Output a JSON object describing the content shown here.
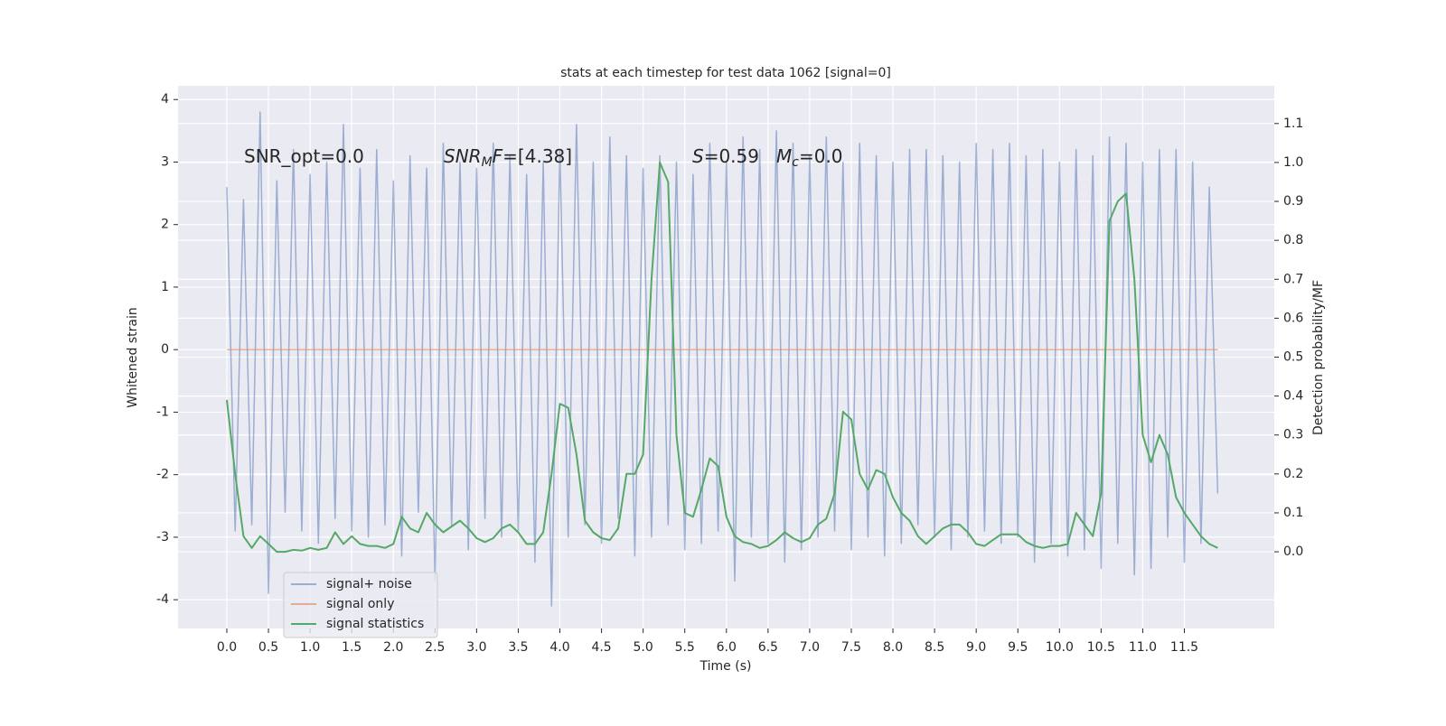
{
  "chart_data": {
    "type": "line",
    "title": "stats at each timestep for test data 1062 [signal=0]",
    "xlabel": "Time (s)",
    "ylabel": "Whitened strain",
    "y2label": "Detection probability/MF",
    "xlim": [
      -0.586,
      12.58
    ],
    "ylim": [
      -4.46,
      4.22
    ],
    "y2lim": [
      -0.197,
      1.197
    ],
    "xticks": [
      {
        "value": 0,
        "label": "0.0"
      },
      0.5,
      {
        "value": 1,
        "label": "1.0"
      },
      1.5,
      {
        "value": 2,
        "label": "2.0"
      },
      2.5,
      {
        "value": 3,
        "label": "3.0"
      },
      3.5,
      {
        "value": 4,
        "label": "4.0"
      },
      4.5,
      {
        "value": 5,
        "label": "5.0"
      },
      5.5,
      {
        "value": 6,
        "label": "6.0"
      },
      6.5,
      {
        "value": 7,
        "label": "7.0"
      },
      7.5,
      {
        "value": 8,
        "label": "8.0"
      },
      8.5,
      {
        "value": 9,
        "label": "9.0"
      },
      9.5,
      {
        "value": 10,
        "label": "10.0"
      },
      10.5,
      {
        "value": 11,
        "label": "11.0"
      },
      11.5
    ],
    "yticks": [
      -4,
      -3,
      -2,
      -1,
      0,
      1,
      2,
      3,
      4
    ],
    "y2ticks": [
      {
        "value": 0,
        "label": "0.0"
      },
      0.1,
      0.2,
      0.3,
      0.4,
      0.5,
      0.6,
      0.7,
      0.8,
      0.9,
      {
        "value": 1,
        "label": "1.0"
      },
      1.1
    ],
    "grid": true,
    "legend": "lower left",
    "annotations": [
      [
        {
          "text": "SNR_opt=0.0"
        }
      ],
      [
        {
          "text": "SNR",
          "italic": true
        },
        {
          "text": "M",
          "italic": true,
          "sub": true
        },
        {
          "text": "F",
          "italic": true
        },
        {
          "text": "=[4.38]"
        }
      ],
      [
        {
          "text": "S",
          "italic": true
        },
        {
          "text": "=0.59"
        }
      ],
      [
        {
          "text": "M",
          "italic": true
        },
        {
          "text": "c",
          "italic": true,
          "sub": true
        },
        {
          "text": "=0.0"
        }
      ]
    ],
    "x": [
      0,
      0.1,
      0.2,
      0.3,
      0.4,
      0.5,
      0.6,
      0.7,
      0.8,
      0.9,
      1,
      1.1,
      1.2,
      1.3,
      1.4,
      1.5,
      1.6,
      1.7,
      1.8,
      1.9,
      2,
      2.1,
      2.2,
      2.3,
      2.4,
      2.5,
      2.6,
      2.7,
      2.8,
      2.9,
      3,
      3.1,
      3.2,
      3.3,
      3.4,
      3.5,
      3.6,
      3.7,
      3.8,
      3.9,
      4,
      4.1,
      4.2,
      4.3,
      4.4,
      4.5,
      4.6,
      4.7,
      4.8,
      4.9,
      5,
      5.1,
      5.2,
      5.3,
      5.4,
      5.5,
      5.6,
      5.7,
      5.8,
      5.9,
      6,
      6.1,
      6.2,
      6.3,
      6.4,
      6.5,
      6.6,
      6.7,
      6.8,
      6.9,
      7,
      7.1,
      7.2,
      7.3,
      7.4,
      7.5,
      7.6,
      7.7,
      7.8,
      7.9,
      8,
      8.1,
      8.2,
      8.3,
      8.4,
      8.5,
      8.6,
      8.7,
      8.8,
      8.9,
      9,
      9.1,
      9.2,
      9.3,
      9.4,
      9.5,
      9.6,
      9.7,
      9.8,
      9.9,
      10,
      10.1,
      10.2,
      10.3,
      10.4,
      10.5,
      10.6,
      10.7,
      10.8,
      10.9,
      11,
      11.1,
      11.2,
      11.3,
      11.4,
      11.5,
      11.6,
      11.7,
      11.8,
      11.9
    ],
    "series": [
      {
        "name": "signal+ noise",
        "color": "#4c72b0",
        "alpha": 0.5,
        "values": [
          2.6,
          -2.9,
          2.4,
          -2.8,
          3.8,
          -3.9,
          2.7,
          -2.6,
          3.2,
          -2.9,
          2.8,
          -3.1,
          3.0,
          -2.7,
          3.6,
          -2.9,
          2.9,
          -3.0,
          3.2,
          -2.8,
          2.7,
          -3.3,
          3.1,
          -2.6,
          2.9,
          -3.7,
          3.3,
          -2.8,
          3.0,
          -3.2,
          2.9,
          -2.7,
          3.3,
          -3.0,
          3.1,
          -2.9,
          2.8,
          -3.4,
          3.0,
          -4.1,
          3.2,
          -3.0,
          3.6,
          -2.8,
          3.0,
          -3.1,
          3.4,
          -2.7,
          3.1,
          -3.3,
          2.9,
          -3.0,
          3.1,
          -2.8,
          3.0,
          -3.2,
          2.8,
          -3.1,
          3.3,
          -2.9,
          3.0,
          -3.7,
          3.4,
          -3.0,
          3.2,
          -3.1,
          3.5,
          -3.4,
          3.3,
          -3.2,
          3.1,
          -3.0,
          3.4,
          -2.9,
          3.0,
          -3.2,
          3.3,
          -3.0,
          3.1,
          -3.3,
          3.0,
          -3.1,
          3.2,
          -2.8,
          3.2,
          -3.0,
          3.1,
          -3.2,
          3.0,
          -3.0,
          3.3,
          -2.9,
          3.2,
          -3.1,
          3.3,
          -3.0,
          3.1,
          -3.4,
          3.2,
          -3.1,
          3.0,
          -3.3,
          3.2,
          -3.2,
          3.1,
          -3.5,
          3.4,
          -3.1,
          3.3,
          -3.6,
          3.0,
          -3.5,
          3.2,
          -3.0,
          3.2,
          -3.4,
          3.0,
          -3.1,
          2.6,
          -2.3
        ]
      },
      {
        "name": "signal only",
        "color": "#dd8452",
        "alpha": 0.6,
        "values": [
          0,
          0,
          0,
          0,
          0,
          0,
          0,
          0,
          0,
          0,
          0,
          0,
          0,
          0,
          0,
          0,
          0,
          0,
          0,
          0,
          0,
          0,
          0,
          0,
          0,
          0,
          0,
          0,
          0,
          0,
          0,
          0,
          0,
          0,
          0,
          0,
          0,
          0,
          0,
          0,
          0,
          0,
          0,
          0,
          0,
          0,
          0,
          0,
          0,
          0,
          0,
          0,
          0,
          0,
          0,
          0,
          0,
          0,
          0,
          0,
          0,
          0,
          0,
          0,
          0,
          0,
          0,
          0,
          0,
          0,
          0,
          0,
          0,
          0,
          0,
          0,
          0,
          0,
          0,
          0,
          0,
          0,
          0,
          0,
          0,
          0,
          0,
          0,
          0,
          0,
          0,
          0,
          0,
          0,
          0,
          0,
          0,
          0,
          0,
          0,
          0,
          0,
          0,
          0,
          0,
          0,
          0,
          0,
          0,
          0,
          0,
          0,
          0,
          0,
          0,
          0,
          0,
          0,
          0,
          0
        ]
      },
      {
        "name": "signal statistics",
        "color": "#55a868",
        "alpha": 1,
        "axis": "y2",
        "values": [
          0.39,
          0.2,
          0.04,
          0.01,
          0.04,
          0.02,
          0.0,
          0.0,
          0.005,
          0.003,
          0.01,
          0.005,
          0.01,
          0.05,
          0.02,
          0.04,
          0.02,
          0.015,
          0.015,
          0.01,
          0.02,
          0.09,
          0.06,
          0.05,
          0.1,
          0.07,
          0.05,
          0.065,
          0.08,
          0.06,
          0.035,
          0.025,
          0.035,
          0.06,
          0.07,
          0.05,
          0.02,
          0.02,
          0.05,
          0.2,
          0.38,
          0.37,
          0.25,
          0.08,
          0.05,
          0.035,
          0.03,
          0.06,
          0.2,
          0.2,
          0.25,
          0.7,
          1.0,
          0.95,
          0.3,
          0.1,
          0.09,
          0.16,
          0.24,
          0.22,
          0.09,
          0.04,
          0.025,
          0.02,
          0.01,
          0.015,
          0.03,
          0.05,
          0.035,
          0.025,
          0.035,
          0.07,
          0.085,
          0.15,
          0.36,
          0.34,
          0.2,
          0.16,
          0.21,
          0.2,
          0.14,
          0.1,
          0.08,
          0.04,
          0.02,
          0.04,
          0.06,
          0.07,
          0.07,
          0.05,
          0.02,
          0.015,
          0.03,
          0.045,
          0.045,
          0.045,
          0.025,
          0.015,
          0.01,
          0.015,
          0.015,
          0.02,
          0.1,
          0.07,
          0.04,
          0.15,
          0.85,
          0.9,
          0.92,
          0.7,
          0.3,
          0.23,
          0.3,
          0.25,
          0.14,
          0.1,
          0.07,
          0.04,
          0.02,
          0.01
        ]
      }
    ]
  }
}
